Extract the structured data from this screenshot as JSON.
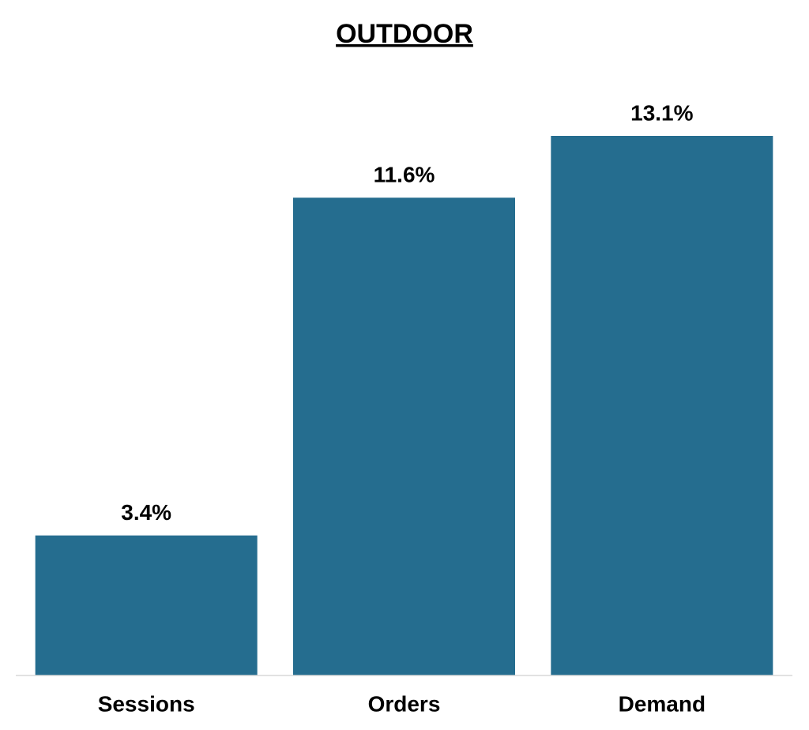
{
  "chart_data": {
    "type": "bar",
    "title": "OUTDOOR",
    "categories": [
      "Sessions",
      "Orders",
      "Demand"
    ],
    "values": [
      3.4,
      11.6,
      13.1
    ],
    "value_labels": [
      "3.4%",
      "11.6%",
      "13.1%"
    ],
    "color": "#256d8f"
  }
}
